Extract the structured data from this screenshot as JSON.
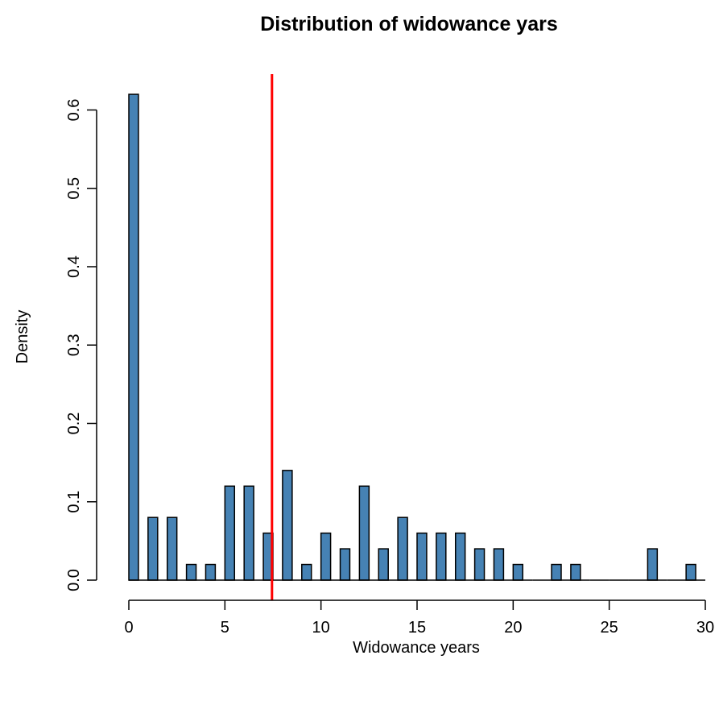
{
  "chart_data": {
    "type": "bar",
    "title": "Distribution of widowance yars",
    "xlabel": "Widowance years",
    "ylabel": "Density",
    "xlim": [
      0,
      30
    ],
    "ylim": [
      0,
      0.62
    ],
    "x_ticks": [
      "0",
      "5",
      "10",
      "15",
      "20",
      "25",
      "30"
    ],
    "y_ticks": [
      "0.0",
      "0.1",
      "0.2",
      "0.3",
      "0.4",
      "0.5",
      "0.6"
    ],
    "grid": false,
    "legend": "none",
    "bar_color": "#4682B4",
    "bar_border": "#000000",
    "bins": [
      {
        "x": 0,
        "value": 0.62
      },
      {
        "x": 1,
        "value": 0.08
      },
      {
        "x": 2,
        "value": 0.08
      },
      {
        "x": 3,
        "value": 0.02
      },
      {
        "x": 4,
        "value": 0.02
      },
      {
        "x": 5,
        "value": 0.12
      },
      {
        "x": 6,
        "value": 0.12
      },
      {
        "x": 7,
        "value": 0.06
      },
      {
        "x": 8,
        "value": 0.14
      },
      {
        "x": 9,
        "value": 0.02
      },
      {
        "x": 10,
        "value": 0.06
      },
      {
        "x": 11,
        "value": 0.04
      },
      {
        "x": 12,
        "value": 0.12
      },
      {
        "x": 13,
        "value": 0.04
      },
      {
        "x": 14,
        "value": 0.08
      },
      {
        "x": 15,
        "value": 0.06
      },
      {
        "x": 16,
        "value": 0.06
      },
      {
        "x": 17,
        "value": 0.06
      },
      {
        "x": 18,
        "value": 0.04
      },
      {
        "x": 19,
        "value": 0.04
      },
      {
        "x": 20,
        "value": 0.02
      },
      {
        "x": 21,
        "value": 0
      },
      {
        "x": 22,
        "value": 0.02
      },
      {
        "x": 23,
        "value": 0.02
      },
      {
        "x": 24,
        "value": 0
      },
      {
        "x": 25,
        "value": 0
      },
      {
        "x": 26,
        "value": 0
      },
      {
        "x": 27,
        "value": 0.04
      },
      {
        "x": 28,
        "value": 0
      },
      {
        "x": 29,
        "value": 0.02
      }
    ],
    "reference_line": {
      "x": 7.45,
      "color": "#FF0000"
    }
  }
}
